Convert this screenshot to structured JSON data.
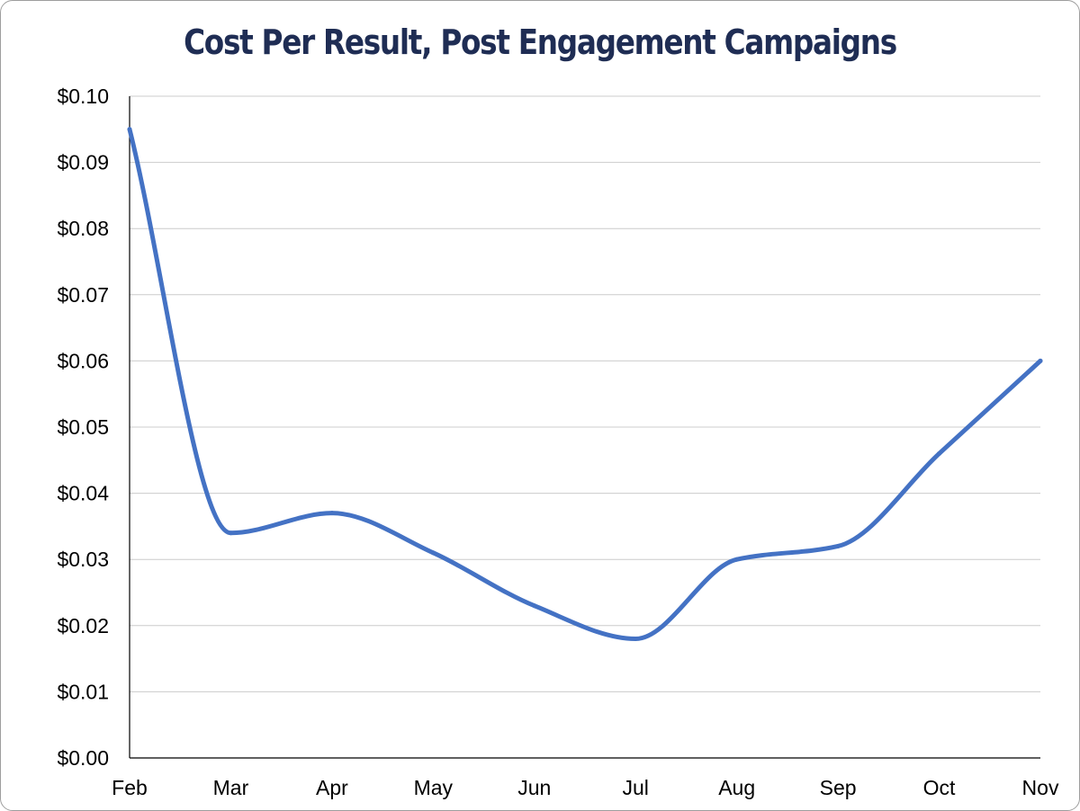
{
  "chart_data": {
    "type": "line",
    "title": "Cost Per Result, Post Engagement Campaigns",
    "xlabel": "",
    "ylabel": "",
    "categories": [
      "Feb",
      "Mar",
      "Apr",
      "May",
      "Jun",
      "Jul",
      "Aug",
      "Sep",
      "Oct",
      "Nov"
    ],
    "series": [
      {
        "values": [
          0.095,
          0.034,
          0.037,
          0.031,
          0.023,
          0.018,
          0.03,
          0.032,
          0.046,
          0.06
        ]
      }
    ],
    "ylim": [
      0,
      0.1
    ],
    "yticks": [
      "$0.00",
      "$0.01",
      "$0.02",
      "$0.03",
      "$0.04",
      "$0.05",
      "$0.06",
      "$0.07",
      "$0.08",
      "$0.09",
      "$0.10"
    ],
    "grid": true,
    "smooth": true,
    "legend": "none"
  },
  "colors": {
    "title": "#1f2d54",
    "line": "#4472c4",
    "grid": "#cccccc",
    "axis": "#000000",
    "border": "#9e9e9e"
  }
}
